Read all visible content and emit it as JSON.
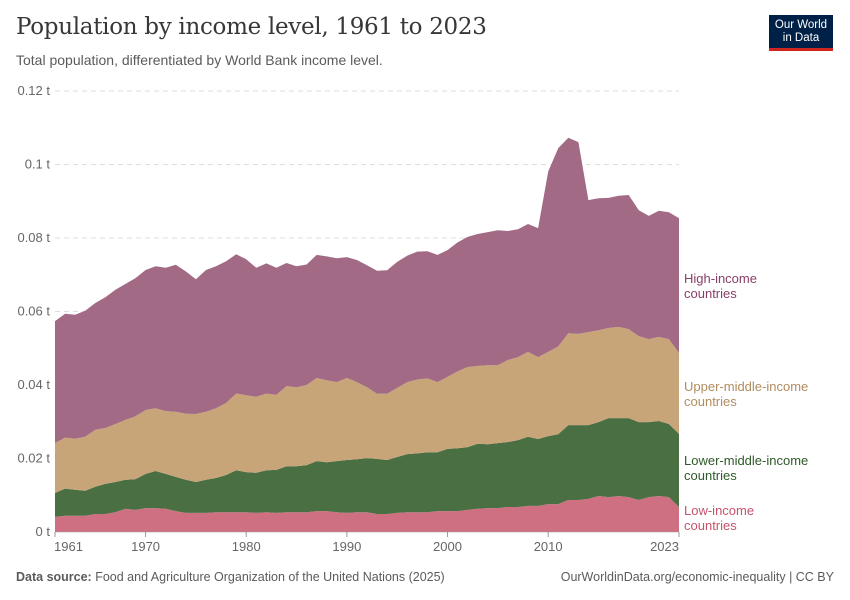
{
  "header": {
    "title": "Population by income level, 1961 to 2023",
    "subtitle": "Total population, differentiated by World Bank income level."
  },
  "logo": {
    "line1": "Our World",
    "line2": "in Data",
    "bg_color": "#002147",
    "accent_color": "#ce261e"
  },
  "footer": {
    "source_label": "Data source:",
    "source_text": " Food and Agriculture Organization of the United Nations (2025)",
    "credit": "OurWorldinData.org/economic-inequality | CC BY"
  },
  "chart_data": {
    "type": "area",
    "stacked": true,
    "title": "Population by income level, 1961 to 2023",
    "subtitle": "Total population, differentiated by World Bank income level.",
    "xlabel": "",
    "ylabel": "",
    "xlim": [
      1961,
      2023
    ],
    "ylim": [
      0,
      0.12
    ],
    "unit_suffix": " t",
    "grid": true,
    "legend": "right, inline labels",
    "x_ticks": [
      {
        "value": 1961,
        "label": "1961"
      },
      {
        "value": 1970,
        "label": "1970"
      },
      {
        "value": 1980,
        "label": "1980"
      },
      {
        "value": 1990,
        "label": "1990"
      },
      {
        "value": 2000,
        "label": "2000"
      },
      {
        "value": 2010,
        "label": "2010"
      },
      {
        "value": 2023,
        "label": "2023"
      }
    ],
    "y_ticks": [
      {
        "value": 0,
        "label": "0 t"
      },
      {
        "value": 0.02,
        "label": "0.02 t"
      },
      {
        "value": 0.04,
        "label": "0.04 t"
      },
      {
        "value": 0.06,
        "label": "0.06 t"
      },
      {
        "value": 0.08,
        "label": "0.08 t"
      },
      {
        "value": 0.1,
        "label": "0.1 t"
      },
      {
        "value": 0.12,
        "label": "0.12 t"
      }
    ],
    "x": [
      1961,
      1962,
      1963,
      1964,
      1965,
      1966,
      1967,
      1968,
      1969,
      1970,
      1971,
      1972,
      1973,
      1974,
      1975,
      1976,
      1977,
      1978,
      1979,
      1980,
      1981,
      1982,
      1983,
      1984,
      1985,
      1986,
      1987,
      1988,
      1989,
      1990,
      1991,
      1992,
      1993,
      1994,
      1995,
      1996,
      1997,
      1998,
      1999,
      2000,
      2001,
      2002,
      2003,
      2004,
      2005,
      2006,
      2007,
      2008,
      2009,
      2010,
      2011,
      2012,
      2013,
      2014,
      2015,
      2016,
      2017,
      2018,
      2019,
      2020,
      2021,
      2022,
      2023
    ],
    "series": [
      {
        "name": "Low-income countries",
        "label_line1": "Low-income",
        "label_line2": "countries",
        "color": "#cf7082",
        "label_color": "#c4536b",
        "values": [
          0.0041,
          0.0044,
          0.0044,
          0.0044,
          0.0049,
          0.0049,
          0.0054,
          0.0063,
          0.006,
          0.0065,
          0.0065,
          0.0063,
          0.0057,
          0.0052,
          0.0052,
          0.0052,
          0.0054,
          0.0054,
          0.0054,
          0.0054,
          0.0052,
          0.0054,
          0.0052,
          0.0054,
          0.0054,
          0.0054,
          0.0057,
          0.0057,
          0.0054,
          0.0052,
          0.0054,
          0.0054,
          0.0049,
          0.0049,
          0.0052,
          0.0054,
          0.0054,
          0.0054,
          0.0057,
          0.0057,
          0.0057,
          0.006,
          0.0063,
          0.0065,
          0.0065,
          0.0068,
          0.0068,
          0.0071,
          0.0071,
          0.0076,
          0.0076,
          0.0087,
          0.0087,
          0.009,
          0.0098,
          0.0095,
          0.0098,
          0.0095,
          0.0087,
          0.0095,
          0.0098,
          0.0095,
          0.0068
        ]
      },
      {
        "name": "Lower-middle-income countries",
        "label_line1": "Lower-middle-income",
        "label_line2": "countries",
        "color": "#4a6f43",
        "label_color": "#2d5a27",
        "values": [
          0.0065,
          0.0074,
          0.0071,
          0.0068,
          0.0074,
          0.0082,
          0.0082,
          0.0079,
          0.0084,
          0.0093,
          0.0101,
          0.0095,
          0.0093,
          0.009,
          0.0084,
          0.009,
          0.0093,
          0.0101,
          0.0114,
          0.0109,
          0.0109,
          0.0114,
          0.0117,
          0.0125,
          0.0125,
          0.0128,
          0.0136,
          0.0133,
          0.0139,
          0.0144,
          0.0144,
          0.0147,
          0.015,
          0.0147,
          0.0152,
          0.0158,
          0.016,
          0.0163,
          0.016,
          0.0169,
          0.0171,
          0.0171,
          0.0177,
          0.0174,
          0.0177,
          0.0177,
          0.0182,
          0.0188,
          0.0182,
          0.0185,
          0.019,
          0.0204,
          0.0204,
          0.0201,
          0.0201,
          0.0215,
          0.0212,
          0.0215,
          0.0212,
          0.0204,
          0.0204,
          0.0199,
          0.0199
        ]
      },
      {
        "name": "Upper-middle-income countries",
        "label_line1": "Upper-middle-income",
        "label_line2": "countries",
        "color": "#c8a479",
        "label_color": "#b08c5f",
        "values": [
          0.0136,
          0.0139,
          0.0139,
          0.0147,
          0.0155,
          0.0152,
          0.0158,
          0.0163,
          0.0171,
          0.0174,
          0.0171,
          0.0171,
          0.0177,
          0.018,
          0.0185,
          0.0185,
          0.019,
          0.0196,
          0.0209,
          0.0209,
          0.0207,
          0.0209,
          0.0204,
          0.0218,
          0.0215,
          0.0218,
          0.0226,
          0.0223,
          0.0215,
          0.0223,
          0.021,
          0.0193,
          0.0177,
          0.018,
          0.0188,
          0.0196,
          0.0201,
          0.0201,
          0.0191,
          0.0196,
          0.0209,
          0.0218,
          0.0212,
          0.0215,
          0.0212,
          0.0223,
          0.0226,
          0.0231,
          0.0223,
          0.0229,
          0.0239,
          0.025,
          0.0248,
          0.0253,
          0.025,
          0.0245,
          0.0248,
          0.0242,
          0.0234,
          0.0226,
          0.0229,
          0.0231,
          0.022
        ]
      },
      {
        "name": "High-income countries",
        "label_line1": "High-income",
        "label_line2": "countries",
        "color": "#a26a85",
        "label_color": "#883f67",
        "values": [
          0.0332,
          0.0337,
          0.0337,
          0.0343,
          0.0345,
          0.0356,
          0.0365,
          0.037,
          0.0376,
          0.0381,
          0.0386,
          0.039,
          0.04,
          0.0387,
          0.0367,
          0.0386,
          0.0386,
          0.0386,
          0.0379,
          0.037,
          0.0351,
          0.0354,
          0.0346,
          0.0335,
          0.0329,
          0.0328,
          0.0335,
          0.0337,
          0.0337,
          0.0329,
          0.0332,
          0.0332,
          0.0335,
          0.0336,
          0.0343,
          0.0344,
          0.0348,
          0.0346,
          0.0346,
          0.0345,
          0.0351,
          0.0354,
          0.0359,
          0.0362,
          0.0367,
          0.0351,
          0.0348,
          0.0348,
          0.0351,
          0.0491,
          0.0539,
          0.0532,
          0.0522,
          0.0359,
          0.0359,
          0.0354,
          0.0357,
          0.0365,
          0.0343,
          0.0335,
          0.0343,
          0.0345,
          0.0367
        ]
      }
    ]
  }
}
